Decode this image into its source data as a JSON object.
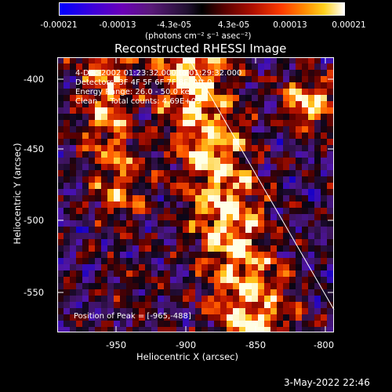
{
  "colorbar": {
    "ticks": [
      "-0.00021",
      "-0.00013",
      "-4.3e-05",
      "4.3e-05",
      "0.00013",
      "0.00021"
    ],
    "units": "(photons cm⁻² s⁻¹ asec⁻²)"
  },
  "title": "Reconstructed RHESSI Image",
  "info": {
    "time": "4-Dec-2002 01:23:32.000 to 01:29:32.000",
    "detectors": "Detectors: 3F 4F 5F 6F 7F 8F, Att 0",
    "energy": "Energy Range: 26.0 - 50.0 keV",
    "clean": "Clean     Total counts: 4.69E+03"
  },
  "peak": "Position of Peak = [-965,-488]",
  "axes": {
    "x_label": "Heliocentric X (arcsec)",
    "y_label": "Heliocentric Y (arcsec)",
    "x_ticks": [
      "-950",
      "-900",
      "-850",
      "-800"
    ],
    "y_ticks": [
      "-400",
      "-450",
      "-500",
      "-550"
    ],
    "x_range": [
      -990,
      -795
    ],
    "y_range": [
      -390,
      -580
    ]
  },
  "footer": {
    "date": "3-May-2022 22:46"
  },
  "colors": {
    "background": "#000000",
    "text": "#ffffff"
  }
}
